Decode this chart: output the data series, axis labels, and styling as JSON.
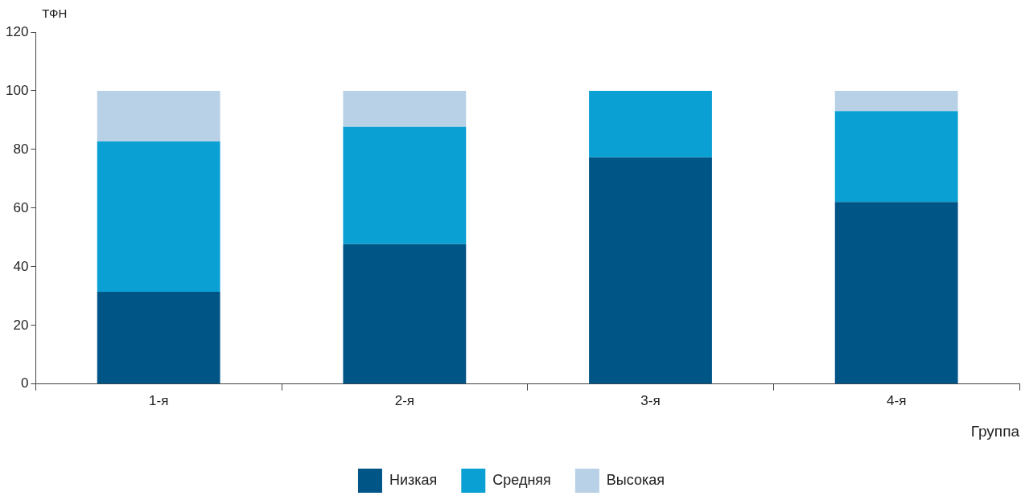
{
  "chart_data": {
    "type": "bar",
    "stacked": true,
    "xlabel": "Группа",
    "ylabel": "ТФН",
    "categories": [
      "1-я",
      "2-я",
      "3-я",
      "4-я"
    ],
    "series": [
      {
        "name": "Низкая",
        "color": "#005587",
        "values": [
          31.5,
          47.7,
          77.3,
          62.1
        ]
      },
      {
        "name": "Средняя",
        "color": "#0aa0d4",
        "values": [
          51.2,
          40,
          22.7,
          31
        ]
      },
      {
        "name": "Высокая",
        "color": "#b8d1e6",
        "values": [
          17.3,
          12.3,
          0,
          6.9
        ]
      }
    ],
    "ylim": [
      0,
      120
    ],
    "yticks": [
      0,
      20,
      40,
      60,
      80,
      100,
      120
    ],
    "grid": false,
    "legend": "bottom"
  }
}
